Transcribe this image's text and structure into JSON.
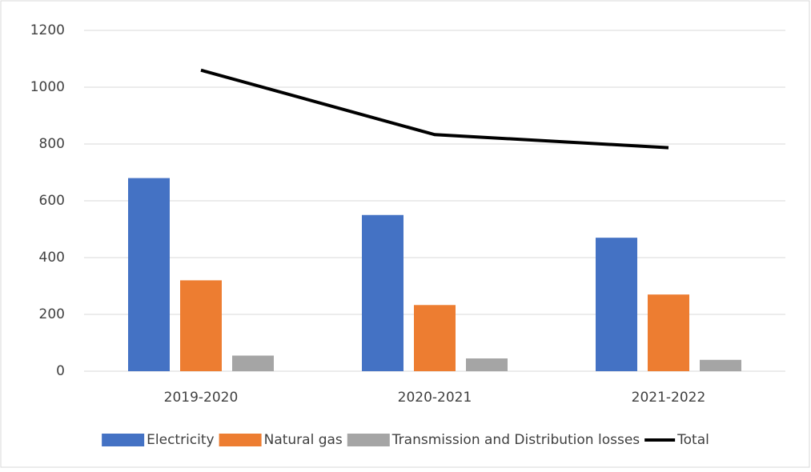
{
  "chart_data": {
    "type": "bar",
    "categories": [
      "2019-2020",
      "2020-2021",
      "2021-2022"
    ],
    "series": [
      {
        "name": "Electricity",
        "color": "#4472c4",
        "values": [
          680,
          550,
          470
        ]
      },
      {
        "name": "Natural gas",
        "color": "#ed7d31",
        "values": [
          320,
          233,
          270
        ]
      },
      {
        "name": "Transmission and Distribution losses",
        "color": "#a5a5a5",
        "values": [
          55,
          45,
          40
        ]
      },
      {
        "name": "Total",
        "color": "#000000",
        "type": "line",
        "values": [
          1060,
          833,
          787
        ]
      }
    ],
    "ylim": [
      0,
      1200
    ],
    "yticks": [
      0,
      200,
      400,
      600,
      800,
      1000,
      1200
    ],
    "grid": true,
    "legend": "bottom"
  }
}
